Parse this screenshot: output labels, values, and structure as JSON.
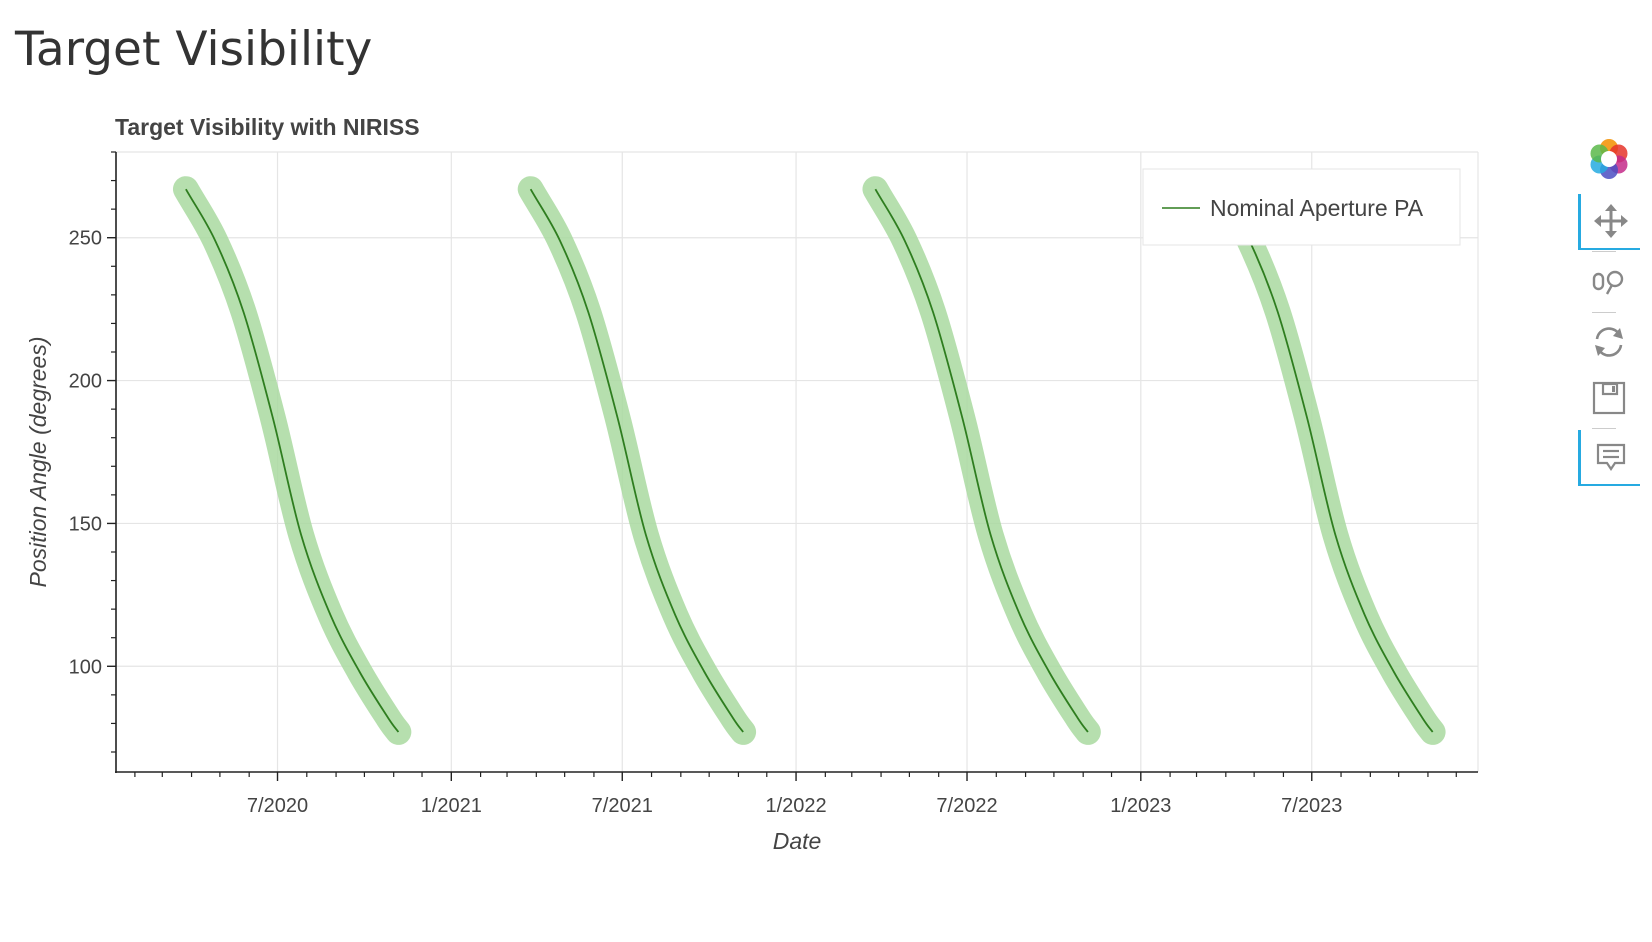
{
  "page": {
    "title": "Target Visibility"
  },
  "chart_data": {
    "type": "line",
    "title": "Target Visibility with NIRISS",
    "xlabel": "Date",
    "ylabel": "Position Angle (degrees)",
    "x_type": "date",
    "xlim": [
      "2020-01-12",
      "2023-12-24"
    ],
    "ylim": [
      63,
      280
    ],
    "xticks": [
      {
        "date": "2020-07-01",
        "label": "7/2020"
      },
      {
        "date": "2021-01-01",
        "label": "1/2021"
      },
      {
        "date": "2021-07-01",
        "label": "7/2021"
      },
      {
        "date": "2022-01-01",
        "label": "1/2022"
      },
      {
        "date": "2022-07-01",
        "label": "7/2022"
      },
      {
        "date": "2023-01-01",
        "label": "1/2023"
      },
      {
        "date": "2023-07-01",
        "label": "7/2023"
      }
    ],
    "yticks": [
      100,
      150,
      200,
      250
    ],
    "grid": true,
    "legend_position": "top-right",
    "series": [
      {
        "name": "Nominal Aperture PA",
        "color": "#2e7d1f",
        "band_color": "#a9d9a0",
        "band_halfwidth": 4,
        "segments": [
          {
            "x": [
              "2020-03-26",
              "2020-04-26",
              "2020-05-26",
              "2020-06-26",
              "2020-07-26",
              "2020-08-26",
              "2020-09-26",
              "2020-10-26",
              "2020-11-06"
            ],
            "y": [
              267,
              249,
              224,
              187,
              146,
              118,
              98,
              82,
              77
            ]
          },
          {
            "x": [
              "2021-03-26",
              "2021-04-26",
              "2021-05-26",
              "2021-06-26",
              "2021-07-26",
              "2021-08-26",
              "2021-09-26",
              "2021-10-26",
              "2021-11-06"
            ],
            "y": [
              267,
              249,
              224,
              187,
              146,
              118,
              98,
              82,
              77
            ]
          },
          {
            "x": [
              "2022-03-26",
              "2022-04-26",
              "2022-05-26",
              "2022-06-26",
              "2022-07-26",
              "2022-08-26",
              "2022-09-26",
              "2022-10-26",
              "2022-11-06"
            ],
            "y": [
              267,
              249,
              224,
              187,
              146,
              118,
              98,
              82,
              77
            ]
          },
          {
            "x": [
              "2023-03-26",
              "2023-04-26",
              "2023-05-26",
              "2023-06-26",
              "2023-07-26",
              "2023-08-26",
              "2023-09-26",
              "2023-10-26",
              "2023-11-06"
            ],
            "y": [
              267,
              249,
              224,
              187,
              146,
              118,
              98,
              82,
              77
            ]
          }
        ]
      }
    ]
  },
  "toolbar": {
    "logo": "bokeh-logo-icon",
    "tools": [
      {
        "icon": "pan-icon",
        "active": true
      },
      {
        "icon": "zoom-icon",
        "active": false
      },
      {
        "icon": "reset-icon",
        "active": false
      },
      {
        "icon": "save-icon",
        "active": false
      },
      {
        "icon": "hover-icon",
        "active": true
      }
    ]
  }
}
